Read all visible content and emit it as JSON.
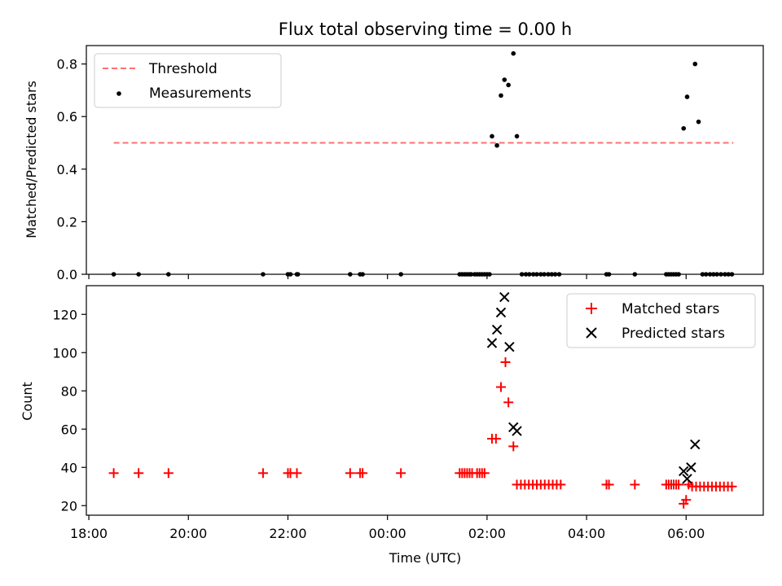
{
  "chart_data": [
    {
      "type": "scatter",
      "title": "Flux total observing time = 0.00 h",
      "xlabel": "",
      "ylabel": "Matched/Predicted stars",
      "ylim": [
        0,
        0.87
      ],
      "yticks": [
        "0.0",
        "0.2",
        "0.4",
        "0.6",
        "0.8"
      ],
      "ytick_values": [
        0,
        0.2,
        0.4,
        0.6,
        0.8
      ],
      "legend_position": "top-left",
      "legend": [
        "Threshold",
        "Measurements"
      ],
      "threshold": {
        "name": "Threshold",
        "value": 0.5,
        "x_start": 18.5,
        "x_end": 30.95,
        "color": "#ff7070"
      },
      "measurements": {
        "name": "Measurements",
        "color": "#000000",
        "x": [
          18.5,
          19.0,
          19.6,
          21.5,
          22.0,
          22.05,
          22.18,
          22.2,
          23.25,
          23.45,
          23.5,
          24.27,
          25.45,
          25.5,
          25.55,
          25.6,
          25.65,
          25.68,
          25.75,
          25.8,
          25.85,
          25.9,
          25.95,
          26.0,
          26.05,
          26.1,
          26.2,
          26.28,
          26.35,
          26.43,
          26.53,
          26.6,
          26.7,
          26.78,
          26.85,
          26.93,
          27.0,
          27.08,
          27.15,
          27.23,
          27.3,
          27.37,
          27.45,
          28.4,
          28.45,
          28.97,
          29.6,
          29.65,
          29.7,
          29.75,
          29.8,
          29.85,
          29.95,
          30.02,
          30.18,
          30.25,
          30.33,
          30.4,
          30.48,
          30.55,
          30.62,
          30.7,
          30.78,
          30.85,
          30.92
        ],
        "y": [
          0,
          0,
          0,
          0,
          0,
          0,
          0,
          0,
          0,
          0,
          0,
          0,
          0,
          0,
          0,
          0,
          0,
          0,
          0,
          0,
          0,
          0,
          0,
          0,
          0,
          0.525,
          0.49,
          0.68,
          0.74,
          0.72,
          0.84,
          0.525,
          0,
          0,
          0,
          0,
          0,
          0,
          0,
          0,
          0,
          0,
          0,
          0,
          0,
          0,
          0,
          0,
          0,
          0,
          0,
          0,
          0.555,
          0.675,
          0.8,
          0.58,
          0,
          0,
          0,
          0,
          0,
          0,
          0,
          0,
          0
        ]
      }
    },
    {
      "type": "scatter",
      "title": "",
      "xlabel": "Time (UTC)",
      "ylabel": "Count",
      "ylim": [
        15,
        135
      ],
      "yticks": [
        "20",
        "40",
        "60",
        "80",
        "100",
        "120"
      ],
      "ytick_values": [
        20,
        40,
        60,
        80,
        100,
        120
      ],
      "xlim": [
        17.95,
        31.55
      ],
      "xticks": [
        "18:00",
        "20:00",
        "22:00",
        "00:00",
        "02:00",
        "04:00",
        "06:00"
      ],
      "xtick_values": [
        18,
        20,
        22,
        24,
        26,
        28,
        30
      ],
      "legend_position": "top-right",
      "legend": [
        "Matched stars",
        "Predicted stars"
      ],
      "series": [
        {
          "name": "Matched stars",
          "marker": "plus",
          "color": "#ff0000",
          "x": [
            18.5,
            19.0,
            19.6,
            21.5,
            22.0,
            22.05,
            22.18,
            23.25,
            23.45,
            23.5,
            24.27,
            25.45,
            25.5,
            25.55,
            25.6,
            25.65,
            25.7,
            25.8,
            25.85,
            25.9,
            25.95,
            26.1,
            26.18,
            26.28,
            26.37,
            26.43,
            26.53,
            26.6,
            26.68,
            26.76,
            26.84,
            26.92,
            27.0,
            27.08,
            27.16,
            27.24,
            27.32,
            27.4,
            27.48,
            28.4,
            28.45,
            28.97,
            29.6,
            29.65,
            29.7,
            29.75,
            29.8,
            29.85,
            29.95,
            30.0,
            30.05,
            30.12,
            30.2,
            30.28,
            30.36,
            30.44,
            30.52,
            30.6,
            30.68,
            30.76,
            30.84,
            30.92
          ],
          "y": [
            37,
            37,
            37,
            37,
            37,
            37,
            37,
            37,
            37,
            37,
            37,
            37,
            37,
            37,
            37,
            37,
            37,
            37,
            37,
            37,
            37,
            55,
            55,
            82,
            95,
            74,
            51,
            31,
            31,
            31,
            31,
            31,
            31,
            31,
            31,
            31,
            31,
            31,
            31,
            31,
            31,
            31,
            31,
            31,
            31,
            31,
            31,
            31,
            21,
            23,
            31,
            30,
            30,
            30,
            30,
            30,
            30,
            30,
            30,
            30,
            30,
            30
          ]
        },
        {
          "name": "Predicted stars",
          "marker": "x",
          "color": "#000000",
          "x": [
            26.1,
            26.2,
            26.28,
            26.35,
            26.45,
            26.53,
            26.6,
            29.95,
            30.02,
            30.1,
            30.18
          ],
          "y": [
            105,
            112,
            121,
            129,
            103,
            61,
            59,
            38,
            34,
            40,
            52
          ]
        }
      ]
    }
  ]
}
